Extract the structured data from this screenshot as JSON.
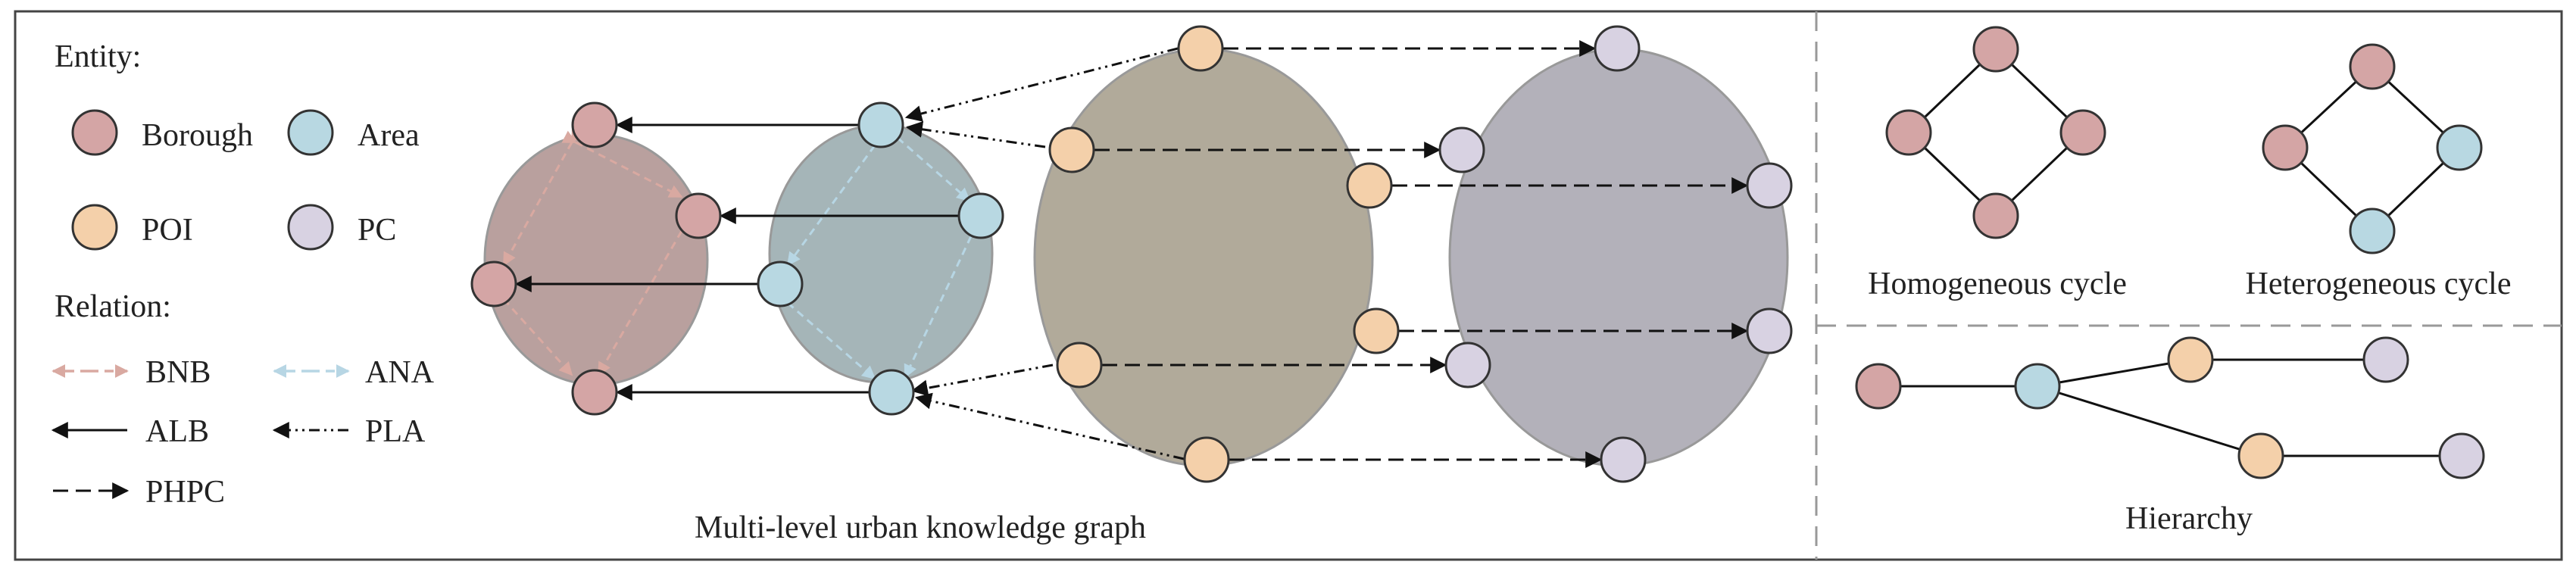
{
  "legend": {
    "entity_title": "Entity:",
    "entities": [
      {
        "label": "Borough",
        "color": "#d4a5a5"
      },
      {
        "label": "Area",
        "color": "#b8d8e2"
      },
      {
        "label": "POI",
        "color": "#f4d0aa"
      },
      {
        "label": "PC",
        "color": "#d8d2e2"
      }
    ],
    "relation_title": "Relation:",
    "relations": [
      "BNB",
      "ANA",
      "ALB",
      "PLA",
      "PHPC"
    ]
  },
  "graph_caption": "Multi-level urban knowledge graph",
  "patterns": {
    "homogeneous": "Homogeneous cycle",
    "heterogeneous": "Heterogeneous cycle",
    "hierarchy": "Hierarchy"
  },
  "colors": {
    "borough": "#d4a5a5",
    "area": "#b8d8e2",
    "poi": "#f4d0aa",
    "pc": "#d8d2e2",
    "borough_ellipse": "#b9a09e",
    "area_ellipse": "#a5b5b8",
    "poi_ellipse": "#b1aa9a",
    "pc_ellipse": "#b3b1ba",
    "bnb_edge": "#d9a9a1",
    "ana_edge": "#b7d6e4"
  }
}
